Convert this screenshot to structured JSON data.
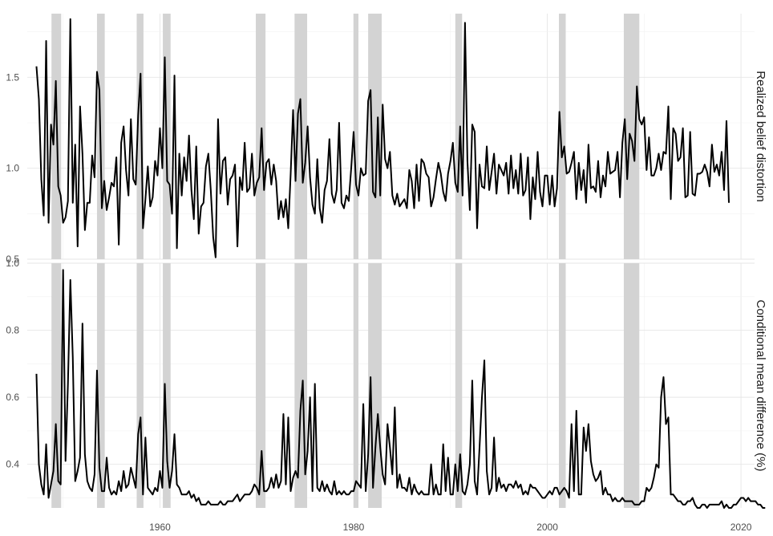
{
  "colors": {
    "recession": "#d3d3d3",
    "line": "#000000",
    "grid": "#e6e6e6",
    "text": "#4d4d4d"
  },
  "chart_data": {
    "type": "line",
    "grid": true,
    "x_ticks": [
      1960,
      1980,
      2000,
      2020
    ],
    "xlim": [
      1946.3,
      2021.4
    ],
    "recessions": [
      [
        1948.8,
        1949.8
      ],
      [
        1953.5,
        1954.3
      ],
      [
        1957.6,
        1958.3
      ],
      [
        1960.3,
        1961.1
      ],
      [
        1969.9,
        1970.9
      ],
      [
        1973.9,
        1975.2
      ],
      [
        1980.0,
        1980.5
      ],
      [
        1981.5,
        1982.9
      ],
      [
        1990.5,
        1991.2
      ],
      [
        2001.2,
        2001.9
      ],
      [
        2007.9,
        2009.5
      ]
    ],
    "panels": [
      {
        "strip_label": "Realized belief distortion",
        "ylim": [
          0.5,
          1.85
        ],
        "y_ticks": [
          0.5,
          1.0,
          1.5
        ],
        "y_tick_labels": [
          "0.5",
          "1.0",
          "1.5"
        ],
        "series": [
          {
            "start_year": 1947.25,
            "step": 0.25,
            "values": [
              1.56,
              1.38,
              0.94,
              0.74,
              1.7,
              0.7,
              1.24,
              1.13,
              1.48,
              0.9,
              0.85,
              0.7,
              0.73,
              0.82,
              1.82,
              0.81,
              1.13,
              0.57,
              1.34,
              1.08,
              0.66,
              0.81,
              0.81,
              1.07,
              0.95,
              1.53,
              1.43,
              0.78,
              0.93,
              0.77,
              0.84,
              0.92,
              0.9,
              1.06,
              0.58,
              1.14,
              1.23,
              0.99,
              0.85,
              1.27,
              0.94,
              0.91,
              1.29,
              1.52,
              0.67,
              0.83,
              1.01,
              0.79,
              0.84,
              1.04,
              0.96,
              1.22,
              1.0,
              1.61,
              0.93,
              0.91,
              0.75,
              1.51,
              0.56,
              1.08,
              0.85,
              1.06,
              0.93,
              1.18,
              0.88,
              0.72,
              1.12,
              0.64,
              0.79,
              0.81,
              1.01,
              1.08,
              0.88,
              0.62,
              0.51,
              1.27,
              0.86,
              1.04,
              1.06,
              0.8,
              0.94,
              0.96,
              1.02,
              0.57,
              0.95,
              0.88,
              1.14,
              0.87,
              0.89,
              1.08,
              0.85,
              0.92,
              0.95,
              1.22,
              0.88,
              1.03,
              1.05,
              0.91,
              1.02,
              0.93,
              0.72,
              0.82,
              0.73,
              0.83,
              0.67,
              0.97,
              1.32,
              0.93,
              1.3,
              1.38,
              0.92,
              1.03,
              1.23,
              0.95,
              0.8,
              0.75,
              1.05,
              0.78,
              0.7,
              0.88,
              0.93,
              1.16,
              0.86,
              0.81,
              0.88,
              1.25,
              0.81,
              0.78,
              0.85,
              0.82,
              1.0,
              1.2,
              0.91,
              0.85,
              1.0,
              0.96,
              0.97,
              1.37,
              1.43,
              0.87,
              0.84,
              1.28,
              0.85,
              1.35,
              1.05,
              1.0,
              1.09,
              0.85,
              0.8,
              0.86,
              0.79,
              0.81,
              0.83,
              0.78,
              0.99,
              0.93,
              0.78,
              1.02,
              0.82,
              1.05,
              1.03,
              0.97,
              0.95,
              0.79,
              0.84,
              0.94,
              1.03,
              0.97,
              0.87,
              0.82,
              0.97,
              1.04,
              1.14,
              0.92,
              0.87,
              1.23,
              0.85,
              1.8,
              1.04,
              0.77,
              1.24,
              1.2,
              0.67,
              1.02,
              0.9,
              0.89,
              1.12,
              0.88,
              0.98,
              1.08,
              0.86,
              1.02,
              0.99,
              0.96,
              1.03,
              0.86,
              1.07,
              0.89,
              0.99,
              0.86,
              1.08,
              0.85,
              0.88,
              1.06,
              0.72,
              0.95,
              0.83,
              1.09,
              0.87,
              0.79,
              0.96,
              0.96,
              0.8,
              0.96,
              0.79,
              0.89,
              1.31,
              1.06,
              1.12,
              0.97,
              0.98,
              1.03,
              1.09,
              0.83,
              1.03,
              0.88,
              0.99,
              0.81,
              1.13,
              0.89,
              0.9,
              0.87,
              1.04,
              0.84,
              0.96,
              0.9,
              1.09,
              0.97,
              0.98,
              0.99,
              1.09,
              0.84,
              1.14,
              1.27,
              0.94,
              1.19,
              1.15,
              1.04,
              1.45,
              1.27,
              1.24,
              1.28,
              0.99,
              1.17,
              0.96,
              0.96,
              1.0,
              1.08,
              0.99,
              1.09,
              1.08,
              1.34,
              0.83,
              1.22,
              1.19,
              1.04,
              1.06,
              1.22,
              0.84,
              0.85,
              1.2,
              0.86,
              0.85,
              0.97,
              0.97,
              0.98,
              1.02,
              0.98,
              0.9,
              1.13,
              0.98,
              1.02,
              0.96,
              1.09,
              0.88,
              1.26,
              0.81
            ]
          }
        ]
      },
      {
        "strip_label": "Conditional mean difference (%)",
        "ylim": [
          0.27,
          1.0
        ],
        "y_ticks": [
          0.4,
          0.6,
          0.8,
          1.0
        ],
        "y_tick_labels": [
          "0.4",
          "0.6",
          "0.8",
          "1.0"
        ],
        "series": [
          {
            "start_year": 1947.25,
            "step": 0.25,
            "values": [
              0.67,
              0.4,
              0.34,
              0.31,
              0.46,
              0.3,
              0.34,
              0.38,
              0.52,
              0.35,
              0.34,
              0.98,
              0.41,
              0.64,
              0.95,
              0.72,
              0.35,
              0.38,
              0.42,
              0.82,
              0.43,
              0.35,
              0.33,
              0.32,
              0.37,
              0.68,
              0.39,
              0.32,
              0.32,
              0.42,
              0.33,
              0.31,
              0.32,
              0.31,
              0.35,
              0.32,
              0.38,
              0.33,
              0.34,
              0.39,
              0.36,
              0.33,
              0.49,
              0.54,
              0.31,
              0.48,
              0.33,
              0.32,
              0.31,
              0.33,
              0.32,
              0.38,
              0.33,
              0.64,
              0.41,
              0.33,
              0.38,
              0.49,
              0.34,
              0.33,
              0.31,
              0.31,
              0.31,
              0.32,
              0.3,
              0.31,
              0.29,
              0.3,
              0.28,
              0.28,
              0.28,
              0.29,
              0.28,
              0.28,
              0.28,
              0.28,
              0.29,
              0.28,
              0.28,
              0.29,
              0.29,
              0.29,
              0.3,
              0.31,
              0.29,
              0.3,
              0.31,
              0.31,
              0.31,
              0.32,
              0.34,
              0.33,
              0.31,
              0.44,
              0.32,
              0.32,
              0.33,
              0.36,
              0.33,
              0.37,
              0.33,
              0.35,
              0.55,
              0.34,
              0.54,
              0.32,
              0.36,
              0.38,
              0.36,
              0.56,
              0.65,
              0.37,
              0.44,
              0.6,
              0.32,
              0.64,
              0.33,
              0.32,
              0.35,
              0.32,
              0.34,
              0.32,
              0.31,
              0.35,
              0.31,
              0.32,
              0.31,
              0.32,
              0.31,
              0.31,
              0.32,
              0.32,
              0.35,
              0.34,
              0.33,
              0.58,
              0.32,
              0.43,
              0.66,
              0.33,
              0.45,
              0.55,
              0.45,
              0.37,
              0.34,
              0.52,
              0.45,
              0.37,
              0.57,
              0.33,
              0.37,
              0.33,
              0.33,
              0.32,
              0.36,
              0.31,
              0.34,
              0.32,
              0.31,
              0.32,
              0.31,
              0.31,
              0.31,
              0.4,
              0.31,
              0.34,
              0.31,
              0.31,
              0.46,
              0.32,
              0.42,
              0.31,
              0.31,
              0.4,
              0.32,
              0.43,
              0.32,
              0.31,
              0.34,
              0.4,
              0.65,
              0.35,
              0.31,
              0.45,
              0.6,
              0.71,
              0.38,
              0.31,
              0.33,
              0.48,
              0.32,
              0.36,
              0.33,
              0.34,
              0.32,
              0.34,
              0.34,
              0.33,
              0.35,
              0.33,
              0.34,
              0.31,
              0.32,
              0.31,
              0.34,
              0.33,
              0.33,
              0.32,
              0.31,
              0.3,
              0.3,
              0.31,
              0.32,
              0.31,
              0.33,
              0.33,
              0.31,
              0.32,
              0.33,
              0.32,
              0.3,
              0.52,
              0.32,
              0.56,
              0.31,
              0.31,
              0.51,
              0.44,
              0.52,
              0.41,
              0.37,
              0.35,
              0.36,
              0.38,
              0.31,
              0.33,
              0.31,
              0.31,
              0.29,
              0.3,
              0.29,
              0.29,
              0.3,
              0.29,
              0.29,
              0.29,
              0.29,
              0.28,
              0.28,
              0.28,
              0.29,
              0.29,
              0.33,
              0.32,
              0.33,
              0.36,
              0.4,
              0.39,
              0.6,
              0.66,
              0.52,
              0.54,
              0.31,
              0.31,
              0.3,
              0.29,
              0.29,
              0.28,
              0.28,
              0.29,
              0.29,
              0.3,
              0.28,
              0.27,
              0.27,
              0.28,
              0.28,
              0.27,
              0.28,
              0.28,
              0.28,
              0.28,
              0.28,
              0.29,
              0.27,
              0.28,
              0.27,
              0.27,
              0.28,
              0.28,
              0.29,
              0.3,
              0.3,
              0.29,
              0.3,
              0.29,
              0.29,
              0.29,
              0.28,
              0.28,
              0.27,
              0.27
            ]
          }
        ]
      }
    ]
  }
}
